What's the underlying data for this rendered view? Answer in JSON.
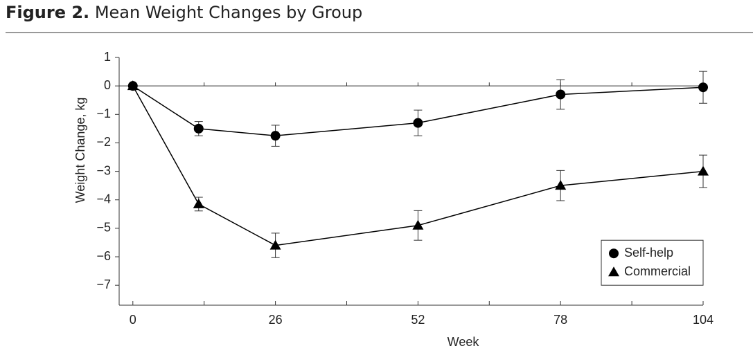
{
  "chart_data": {
    "type": "line",
    "figure_label": "Figure 2.",
    "title": "Mean Weight Changes by Group",
    "x_label": "Week",
    "y_label": "Weight Change, kg",
    "x": [
      0,
      12,
      26,
      52,
      78,
      104
    ],
    "series": [
      {
        "name": "Self-help",
        "color": "#000000",
        "marker": "circle",
        "values": [
          0,
          -1.5,
          -1.75,
          -1.3,
          -0.3,
          -0.05
        ],
        "errors": [
          null,
          0.25,
          0.37,
          0.45,
          0.52,
          0.56
        ]
      },
      {
        "name": "Commercial",
        "color": "#000000",
        "marker": "triangle",
        "values": [
          0,
          -4.15,
          -5.6,
          -4.9,
          -3.5,
          -3.0
        ],
        "errors": [
          null,
          0.24,
          0.43,
          0.52,
          0.53,
          0.57
        ]
      }
    ],
    "xlim": [
      -2.5,
      104
    ],
    "ylim": [
      -7.7,
      1
    ],
    "xticks": [
      0,
      26,
      52,
      78,
      104
    ],
    "xminorticks": [
      13,
      39,
      65,
      91
    ],
    "yticks": [
      1,
      0,
      {
        "value": -1,
        "label": "−1"
      },
      {
        "value": -2,
        "label": "−2"
      },
      {
        "value": -3,
        "label": "−3"
      },
      {
        "value": -4,
        "label": "−4"
      },
      {
        "value": -5,
        "label": "−5"
      },
      {
        "value": -6,
        "label": "−6"
      },
      {
        "value": -7,
        "label": "−7"
      }
    ],
    "zero_line": true,
    "legend": "lower right"
  }
}
